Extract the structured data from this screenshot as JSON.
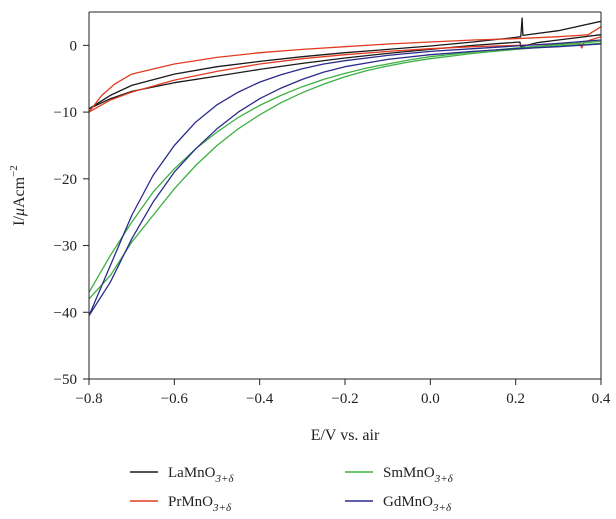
{
  "chart_data": {
    "type": "line",
    "title": "",
    "xlabel": "E/V vs. air",
    "ylabel": {
      "base": "I/",
      "mu": "μ",
      "unit": "Acm",
      "exp": "−2"
    },
    "xlim": [
      -0.8,
      0.4
    ],
    "ylim": [
      -50,
      5
    ],
    "x_ticks": [
      -0.8,
      -0.6,
      -0.4,
      -0.2,
      0.0,
      0.2,
      0.4
    ],
    "x_tick_labels": [
      "−0.8",
      "−0.6",
      "−0.4",
      "−0.2",
      "0.0",
      "0.2",
      "0.4"
    ],
    "y_ticks": [
      0,
      -10,
      -20,
      -30,
      -40,
      -50
    ],
    "y_tick_labels": [
      "0",
      "−10",
      "−20",
      "−30",
      "−40",
      "−50"
    ],
    "grid": false,
    "legend_position": "bottom",
    "series": [
      {
        "name": "LaMnO",
        "sub": "3+δ",
        "color": "#1a1a1a",
        "upper": [
          [
            -0.8,
            -9.5
          ],
          [
            -0.75,
            -7.5
          ],
          [
            -0.7,
            -6.0
          ],
          [
            -0.6,
            -4.3
          ],
          [
            -0.5,
            -3.2
          ],
          [
            -0.4,
            -2.4
          ],
          [
            -0.3,
            -1.7
          ],
          [
            -0.2,
            -1.1
          ],
          [
            -0.1,
            -0.6
          ],
          [
            0.0,
            -0.1
          ],
          [
            0.1,
            0.5
          ],
          [
            0.2,
            1.2
          ],
          [
            0.212,
            1.3
          ],
          [
            0.215,
            4.1
          ],
          [
            0.217,
            1.5
          ],
          [
            0.3,
            2.2
          ],
          [
            0.4,
            3.6
          ]
        ],
        "lower": [
          [
            -0.8,
            -9.5
          ],
          [
            -0.75,
            -8.0
          ],
          [
            -0.7,
            -6.9
          ],
          [
            -0.6,
            -5.6
          ],
          [
            -0.5,
            -4.6
          ],
          [
            -0.4,
            -3.6
          ],
          [
            -0.3,
            -2.7
          ],
          [
            -0.2,
            -1.9
          ],
          [
            -0.1,
            -1.2
          ],
          [
            0.0,
            -0.6
          ],
          [
            0.1,
            0.0
          ],
          [
            0.21,
            0.5
          ],
          [
            0.212,
            -0.2
          ],
          [
            0.25,
            0.4
          ],
          [
            0.3,
            0.8
          ],
          [
            0.4,
            1.6
          ]
        ]
      },
      {
        "name": "PrMnO",
        "sub": "3+δ",
        "color": "#e23b22",
        "upper": [
          [
            -0.8,
            -10.0
          ],
          [
            -0.77,
            -7.5
          ],
          [
            -0.74,
            -5.8
          ],
          [
            -0.7,
            -4.3
          ],
          [
            -0.6,
            -2.8
          ],
          [
            -0.5,
            -1.8
          ],
          [
            -0.4,
            -1.1
          ],
          [
            -0.3,
            -0.6
          ],
          [
            -0.2,
            -0.2
          ],
          [
            -0.1,
            0.2
          ],
          [
            0.0,
            0.5
          ],
          [
            0.1,
            0.8
          ],
          [
            0.2,
            1.0
          ],
          [
            0.3,
            1.3
          ],
          [
            0.35,
            1.5
          ],
          [
            0.37,
            1.6
          ],
          [
            0.4,
            2.8
          ]
        ],
        "lower": [
          [
            -0.8,
            -10.0
          ],
          [
            -0.75,
            -8.2
          ],
          [
            -0.7,
            -7.0
          ],
          [
            -0.6,
            -5.2
          ],
          [
            -0.5,
            -3.9
          ],
          [
            -0.4,
            -2.8
          ],
          [
            -0.3,
            -2.0
          ],
          [
            -0.2,
            -1.4
          ],
          [
            -0.1,
            -0.9
          ],
          [
            0.0,
            -0.5
          ],
          [
            0.1,
            -0.2
          ],
          [
            0.2,
            0.0
          ],
          [
            0.3,
            0.2
          ],
          [
            0.35,
            0.3
          ],
          [
            0.355,
            -0.4
          ],
          [
            0.36,
            0.5
          ],
          [
            0.4,
            1.3
          ]
        ]
      },
      {
        "name": "SmMnO",
        "sub": "3+δ",
        "color": "#3cb043",
        "upper": [
          [
            -0.8,
            -37.0
          ],
          [
            -0.75,
            -31.5
          ],
          [
            -0.7,
            -26.5
          ],
          [
            -0.65,
            -22.0
          ],
          [
            -0.6,
            -18.5
          ],
          [
            -0.55,
            -15.5
          ],
          [
            -0.5,
            -13.0
          ],
          [
            -0.45,
            -10.8
          ],
          [
            -0.4,
            -9.0
          ],
          [
            -0.35,
            -7.5
          ],
          [
            -0.3,
            -6.2
          ],
          [
            -0.25,
            -5.1
          ],
          [
            -0.2,
            -4.2
          ],
          [
            -0.15,
            -3.4
          ],
          [
            -0.1,
            -2.8
          ],
          [
            -0.05,
            -2.2
          ],
          [
            0.0,
            -1.7
          ],
          [
            0.1,
            -1.0
          ],
          [
            0.2,
            -0.4
          ],
          [
            0.3,
            0.1
          ],
          [
            0.4,
            0.6
          ]
        ],
        "lower": [
          [
            -0.8,
            -38.0
          ],
          [
            -0.75,
            -34.5
          ],
          [
            -0.7,
            -29.5
          ],
          [
            -0.65,
            -25.5
          ],
          [
            -0.6,
            -21.5
          ],
          [
            -0.55,
            -18.0
          ],
          [
            -0.5,
            -15.0
          ],
          [
            -0.45,
            -12.5
          ],
          [
            -0.4,
            -10.4
          ],
          [
            -0.35,
            -8.6
          ],
          [
            -0.3,
            -7.1
          ],
          [
            -0.25,
            -5.8
          ],
          [
            -0.2,
            -4.7
          ],
          [
            -0.15,
            -3.8
          ],
          [
            -0.1,
            -3.1
          ],
          [
            -0.05,
            -2.5
          ],
          [
            0.0,
            -2.0
          ],
          [
            0.1,
            -1.2
          ],
          [
            0.2,
            -0.6
          ],
          [
            0.3,
            -0.1
          ],
          [
            0.4,
            0.3
          ]
        ]
      },
      {
        "name": "GdMnO",
        "sub": "3+δ",
        "color": "#2b2b8c",
        "upper": [
          [
            -0.8,
            -40.5
          ],
          [
            -0.75,
            -33.0
          ],
          [
            -0.7,
            -25.5
          ],
          [
            -0.65,
            -19.5
          ],
          [
            -0.6,
            -15.0
          ],
          [
            -0.55,
            -11.5
          ],
          [
            -0.5,
            -8.9
          ],
          [
            -0.45,
            -7.0
          ],
          [
            -0.4,
            -5.5
          ],
          [
            -0.35,
            -4.4
          ],
          [
            -0.3,
            -3.5
          ],
          [
            -0.25,
            -2.8
          ],
          [
            -0.2,
            -2.3
          ],
          [
            -0.1,
            -1.5
          ],
          [
            0.0,
            -0.9
          ],
          [
            0.1,
            -0.5
          ],
          [
            0.2,
            -0.1
          ],
          [
            0.3,
            0.3
          ],
          [
            0.4,
            0.8
          ]
        ],
        "lower": [
          [
            -0.8,
            -40.5
          ],
          [
            -0.75,
            -35.5
          ],
          [
            -0.7,
            -29.0
          ],
          [
            -0.65,
            -23.5
          ],
          [
            -0.6,
            -19.0
          ],
          [
            -0.55,
            -15.5
          ],
          [
            -0.5,
            -12.5
          ],
          [
            -0.45,
            -10.0
          ],
          [
            -0.4,
            -8.0
          ],
          [
            -0.35,
            -6.4
          ],
          [
            -0.3,
            -5.1
          ],
          [
            -0.25,
            -4.0
          ],
          [
            -0.2,
            -3.2
          ],
          [
            -0.1,
            -2.1
          ],
          [
            0.0,
            -1.4
          ],
          [
            0.1,
            -0.9
          ],
          [
            0.2,
            -0.5
          ],
          [
            0.3,
            -0.2
          ],
          [
            0.4,
            0.2
          ]
        ]
      }
    ]
  }
}
